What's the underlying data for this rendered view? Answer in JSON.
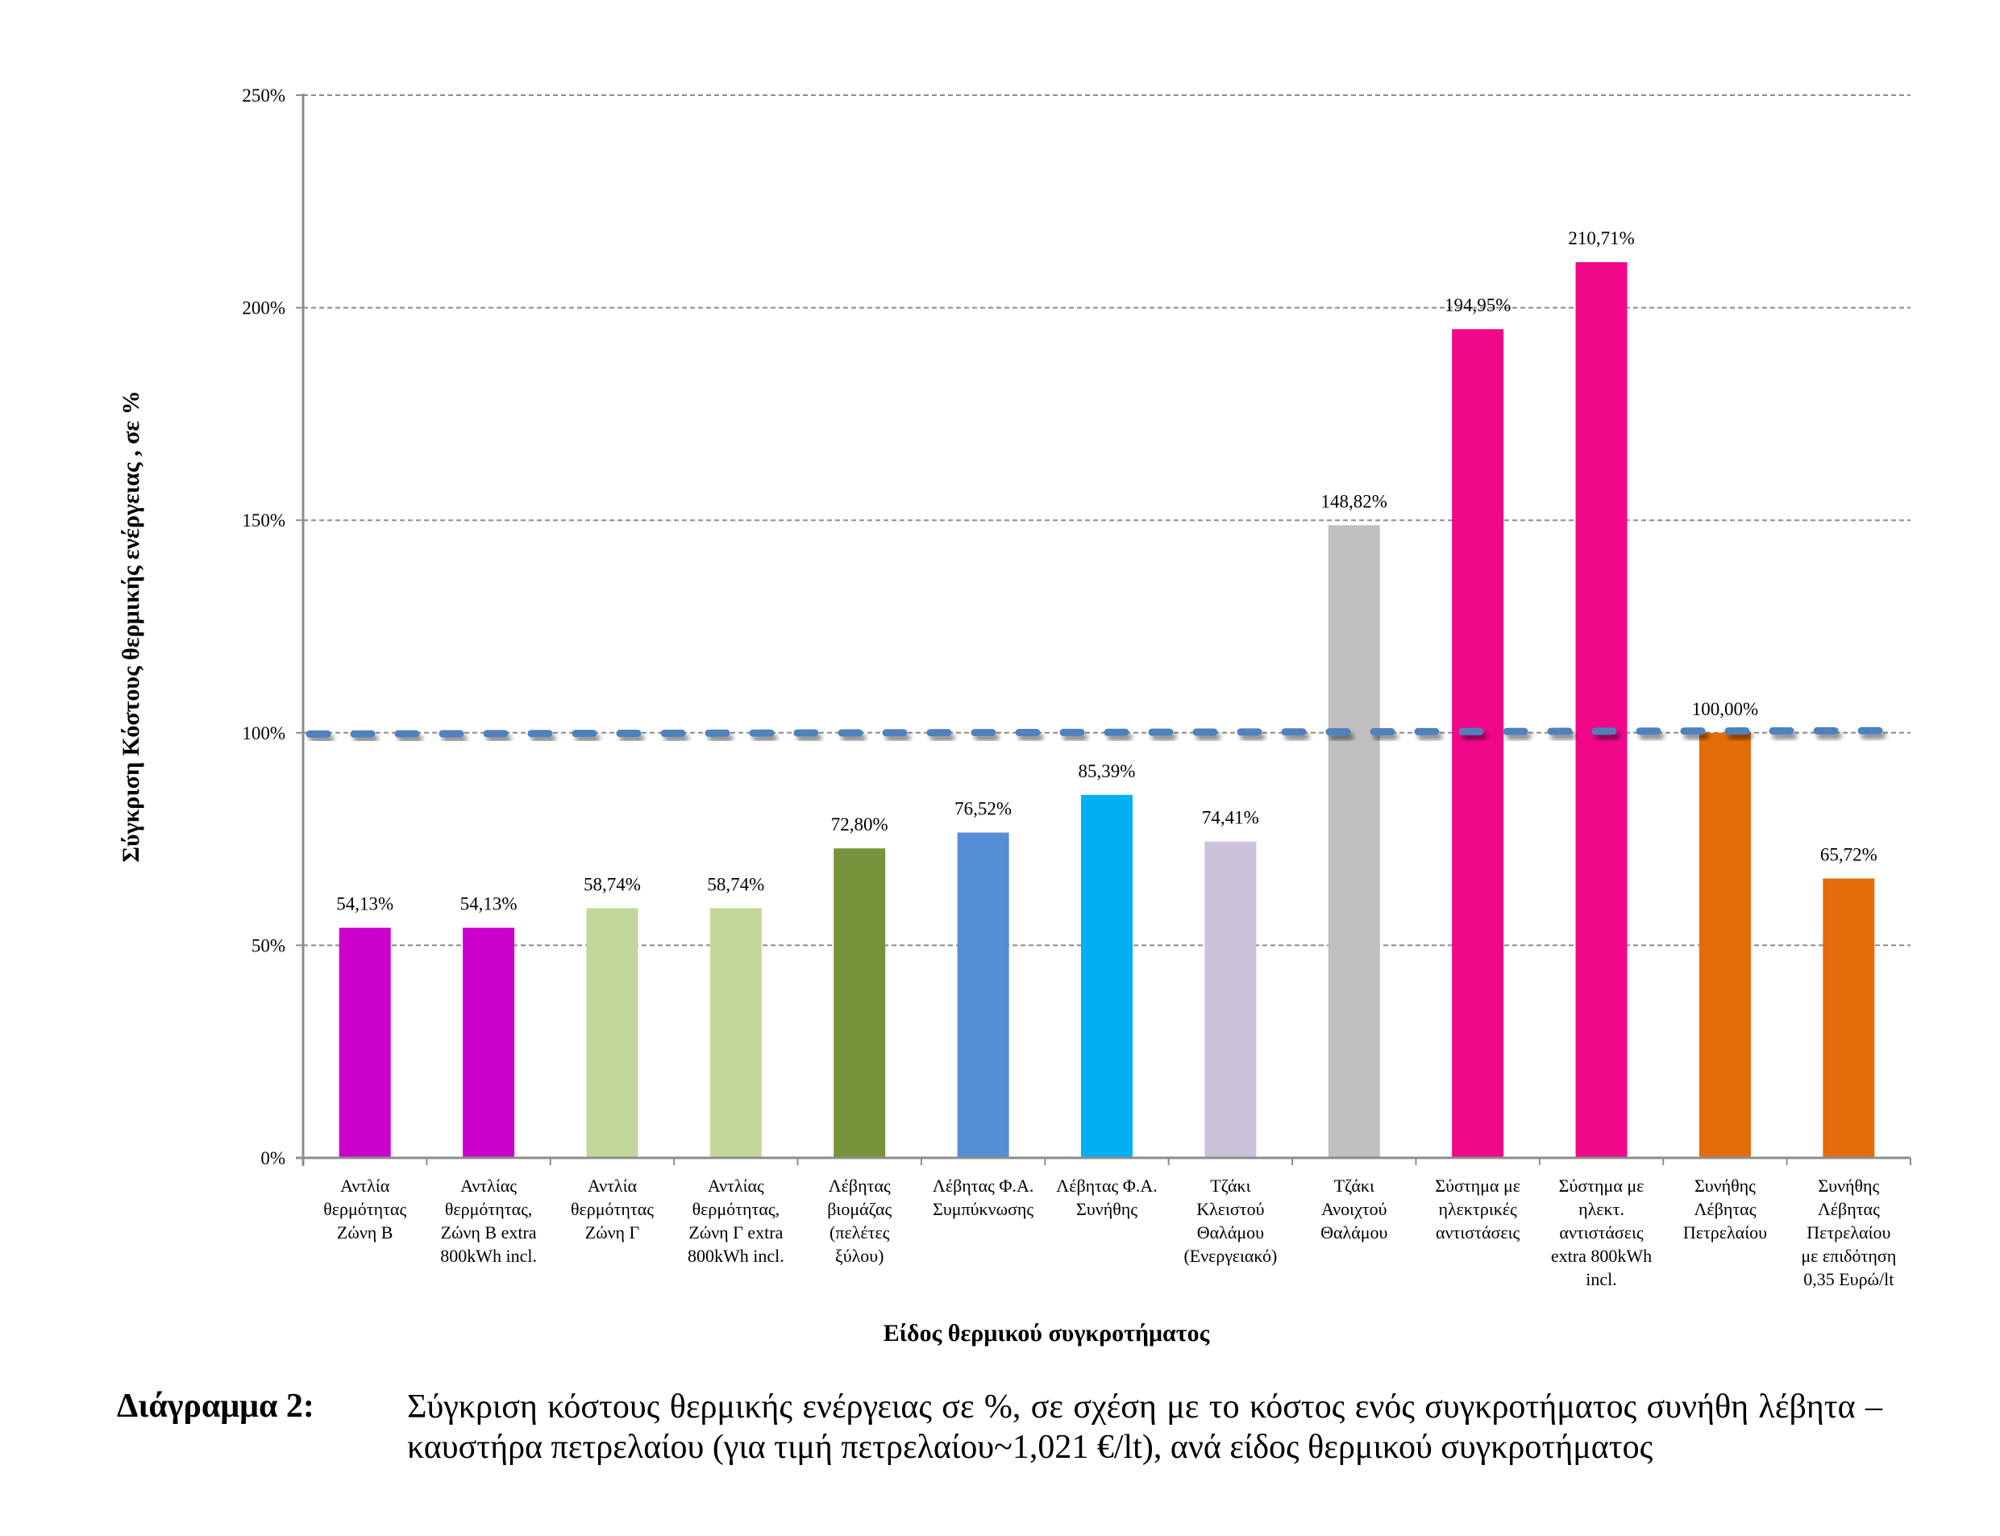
{
  "chart_data": {
    "type": "bar",
    "title": "",
    "xlabel": "Είδος θερμικού συγκροτήματος",
    "ylabel": "Σύγκριση Κόστους θερμικής ενέργειας , σε  %",
    "ylim": [
      0,
      250
    ],
    "yticks": [
      0,
      50,
      100,
      150,
      200,
      250
    ],
    "ytick_labels": [
      "0%",
      "50%",
      "100%",
      "150%",
      "200%",
      "250%"
    ],
    "grid": "horizontal-dashed",
    "legend": "none",
    "categories": [
      [
        "Αντλία",
        "θερμότητας",
        "Ζώνη Β"
      ],
      [
        "Αντλίας",
        "θερμότητας,",
        "Ζώνη Β extra",
        "800kWh incl."
      ],
      [
        "Αντλία",
        "θερμότητας",
        "Ζώνη Γ"
      ],
      [
        "Αντλίας",
        "θερμότητας,",
        "Ζώνη Γ extra",
        "800kWh incl."
      ],
      [
        "Λέβητας",
        "βιομάζας",
        "(πελέτες",
        "ξύλου)"
      ],
      [
        "Λέβητας Φ.Α.",
        "Συμπύκνωσης"
      ],
      [
        "Λέβητας Φ.Α.",
        "Συνήθης"
      ],
      [
        "Τζάκι",
        "Κλειστού",
        "Θαλάμου",
        "(Ενεργειακό)"
      ],
      [
        "Τζάκι",
        "Ανοιχτού",
        "Θαλάμου"
      ],
      [
        "Σύστημα με",
        "ηλεκτρικές",
        "αντιστάσεις"
      ],
      [
        "Σύστημα με",
        "ηλεκτ.",
        "αντιστάσεις",
        "extra 800kWh",
        "incl."
      ],
      [
        "Συνήθης",
        "Λέβητας",
        "Πετρελαίου"
      ],
      [
        "Συνήθης",
        "Λέβητας",
        "Πετρελαίου",
        "με επιδότηση",
        "0,35 Ευρώ/lt"
      ]
    ],
    "values": [
      54.13,
      54.13,
      58.74,
      58.74,
      72.8,
      76.52,
      85.39,
      74.41,
      148.82,
      194.95,
      210.71,
      100.0,
      65.72
    ],
    "data_labels": [
      "54,13%",
      "54,13%",
      "58,74%",
      "58,74%",
      "72,80%",
      "76,52%",
      "85,39%",
      "74,41%",
      "148,82%",
      "194,95%",
      "210,71%",
      "100,00%",
      "65,72%"
    ],
    "colors": [
      "#CC00CC",
      "#CC00CC",
      "#C4D79B",
      "#C4D79B",
      "#77933C",
      "#558ED5",
      "#00B0F0",
      "#CCC1DA",
      "#BFBFBF",
      "#F0078A",
      "#F0078A",
      "#E46C0A",
      "#E46C0A"
    ],
    "reference_line": {
      "name": "100% reference (dashed trend)",
      "start": 99.7,
      "end": 100.5,
      "color": "#4F81BD"
    }
  },
  "caption": {
    "label": "Διάγραμμα 2:",
    "text": "Σύγκριση κόστους θερμικής ενέργειας σε %, σε σχέση με το κόστος ενός συγκροτήματος συνήθη λέβητα – καυστήρα πετρελαίου (για τιμή πετρελαίου~1,021 €/lt), ανά είδος θερμικού συγκροτήματος"
  }
}
